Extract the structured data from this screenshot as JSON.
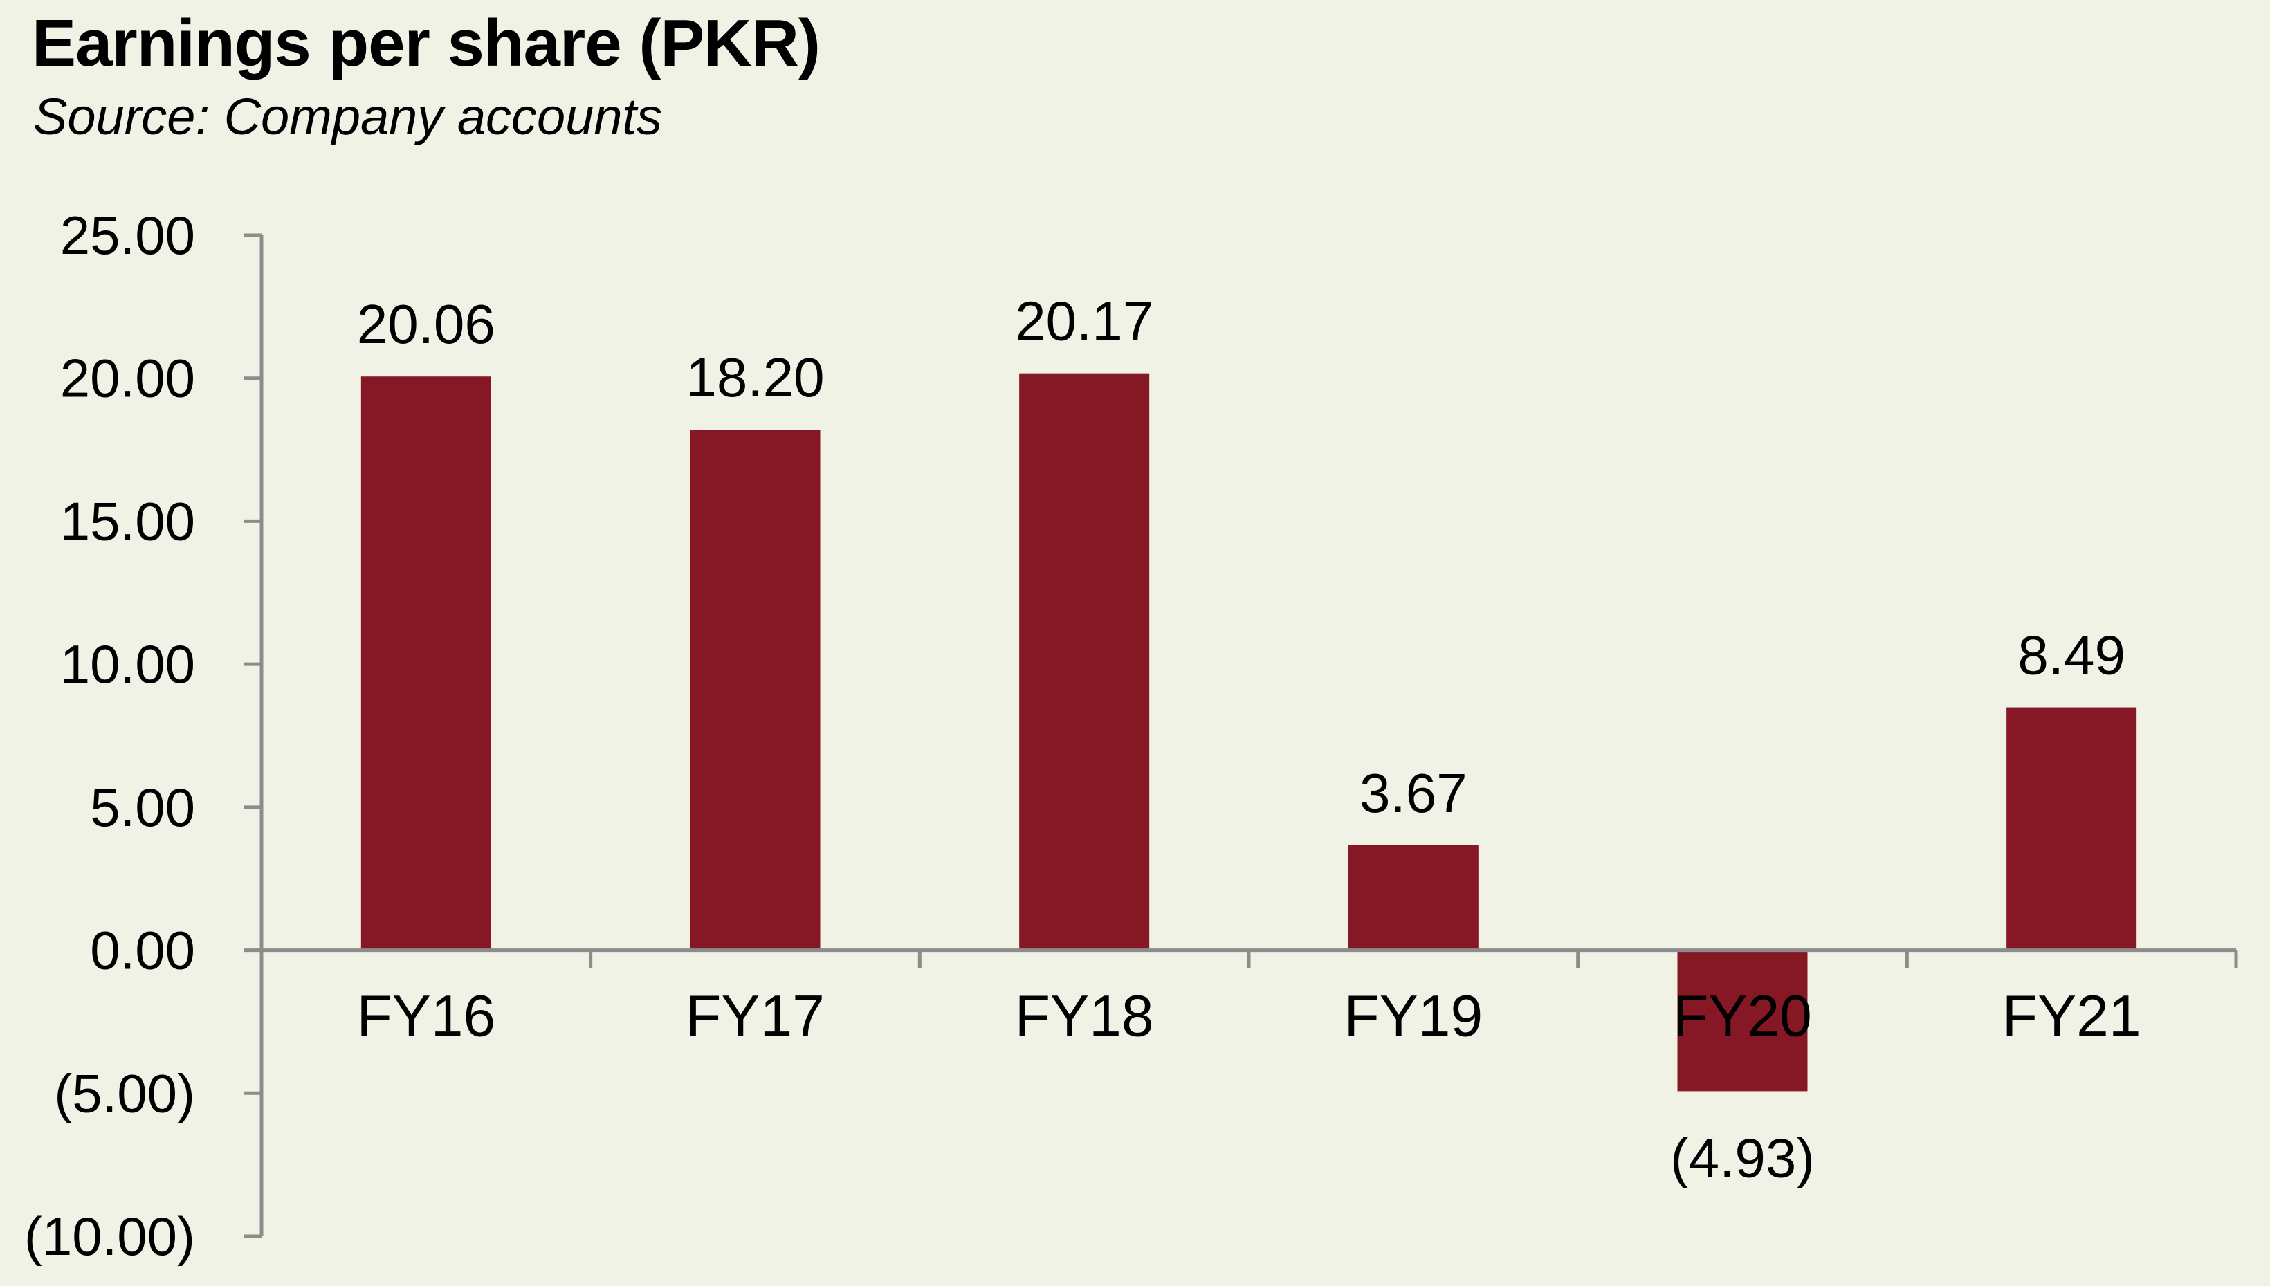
{
  "chart_data": {
    "type": "bar",
    "title": "Earnings per share (PKR)",
    "subtitle": "Source: Company accounts",
    "categories": [
      "FY16",
      "FY17",
      "FY18",
      "FY19",
      "FY20",
      "FY21"
    ],
    "values": [
      20.06,
      18.2,
      20.17,
      3.67,
      -4.93,
      8.49
    ],
    "value_labels": [
      "20.06",
      "18.20",
      "20.17",
      "3.67",
      "(4.93)",
      "8.49"
    ],
    "ylim": [
      -10,
      25
    ],
    "yticks": [
      25,
      20,
      15,
      10,
      5,
      0,
      -5,
      -10
    ],
    "ytick_labels": [
      "25.00",
      "20.00",
      "15.00",
      "10.00",
      "5.00",
      "0.00",
      "(5.00)",
      "(10.00)"
    ],
    "xlabel": "",
    "ylabel": "",
    "grid": false,
    "legend": "none",
    "colors": {
      "bar": "#861825",
      "axis": "#8c8c8c",
      "background": "#eff2e4",
      "text": "#000000"
    }
  }
}
